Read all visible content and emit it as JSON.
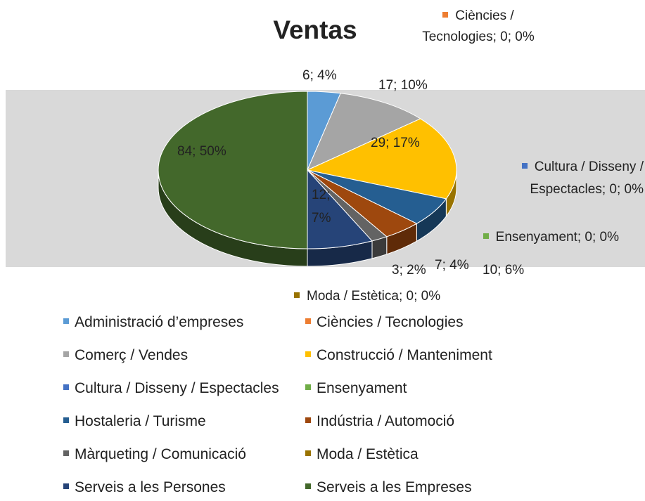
{
  "chart_data": {
    "type": "pie3d",
    "title": "Ventas",
    "categories": [
      "Administració d’empreses",
      "Ciències / Tecnologies",
      "Comerç / Vendes",
      "Construcció / Manteniment",
      "Cultura / Disseny / Espectacles",
      "Ensenyament",
      "Hostaleria / Turisme",
      "Indústria / Automoció",
      "Màrqueting / Comunicació",
      "Moda / Estètica",
      "Serveis a les Persones",
      "Serveis a les Empreses"
    ],
    "values": [
      6,
      0,
      17,
      29,
      0,
      0,
      10,
      7,
      3,
      0,
      12,
      84
    ],
    "value_labels": [
      "6; 4%",
      "Ciències / Tecnologies; 0; 0%",
      "17; 10%",
      "29; 17%",
      "Cultura / Disseny / Espectacles; 0; 0%",
      "Ensenyament; 0; 0%",
      "10; 6%",
      "7; 4%",
      "3; 2%",
      "Moda / Estètica; 0; 0%",
      "12; 7%",
      "84; 50%"
    ],
    "colors": [
      "#5b9bd5",
      "#ed7d31",
      "#a5a5a5",
      "#ffc000",
      "#4472c4",
      "#70ad47",
      "#255e91",
      "#9e480e",
      "#636363",
      "#997300",
      "#264478",
      "#43682b"
    ],
    "legend": "bottom"
  }
}
